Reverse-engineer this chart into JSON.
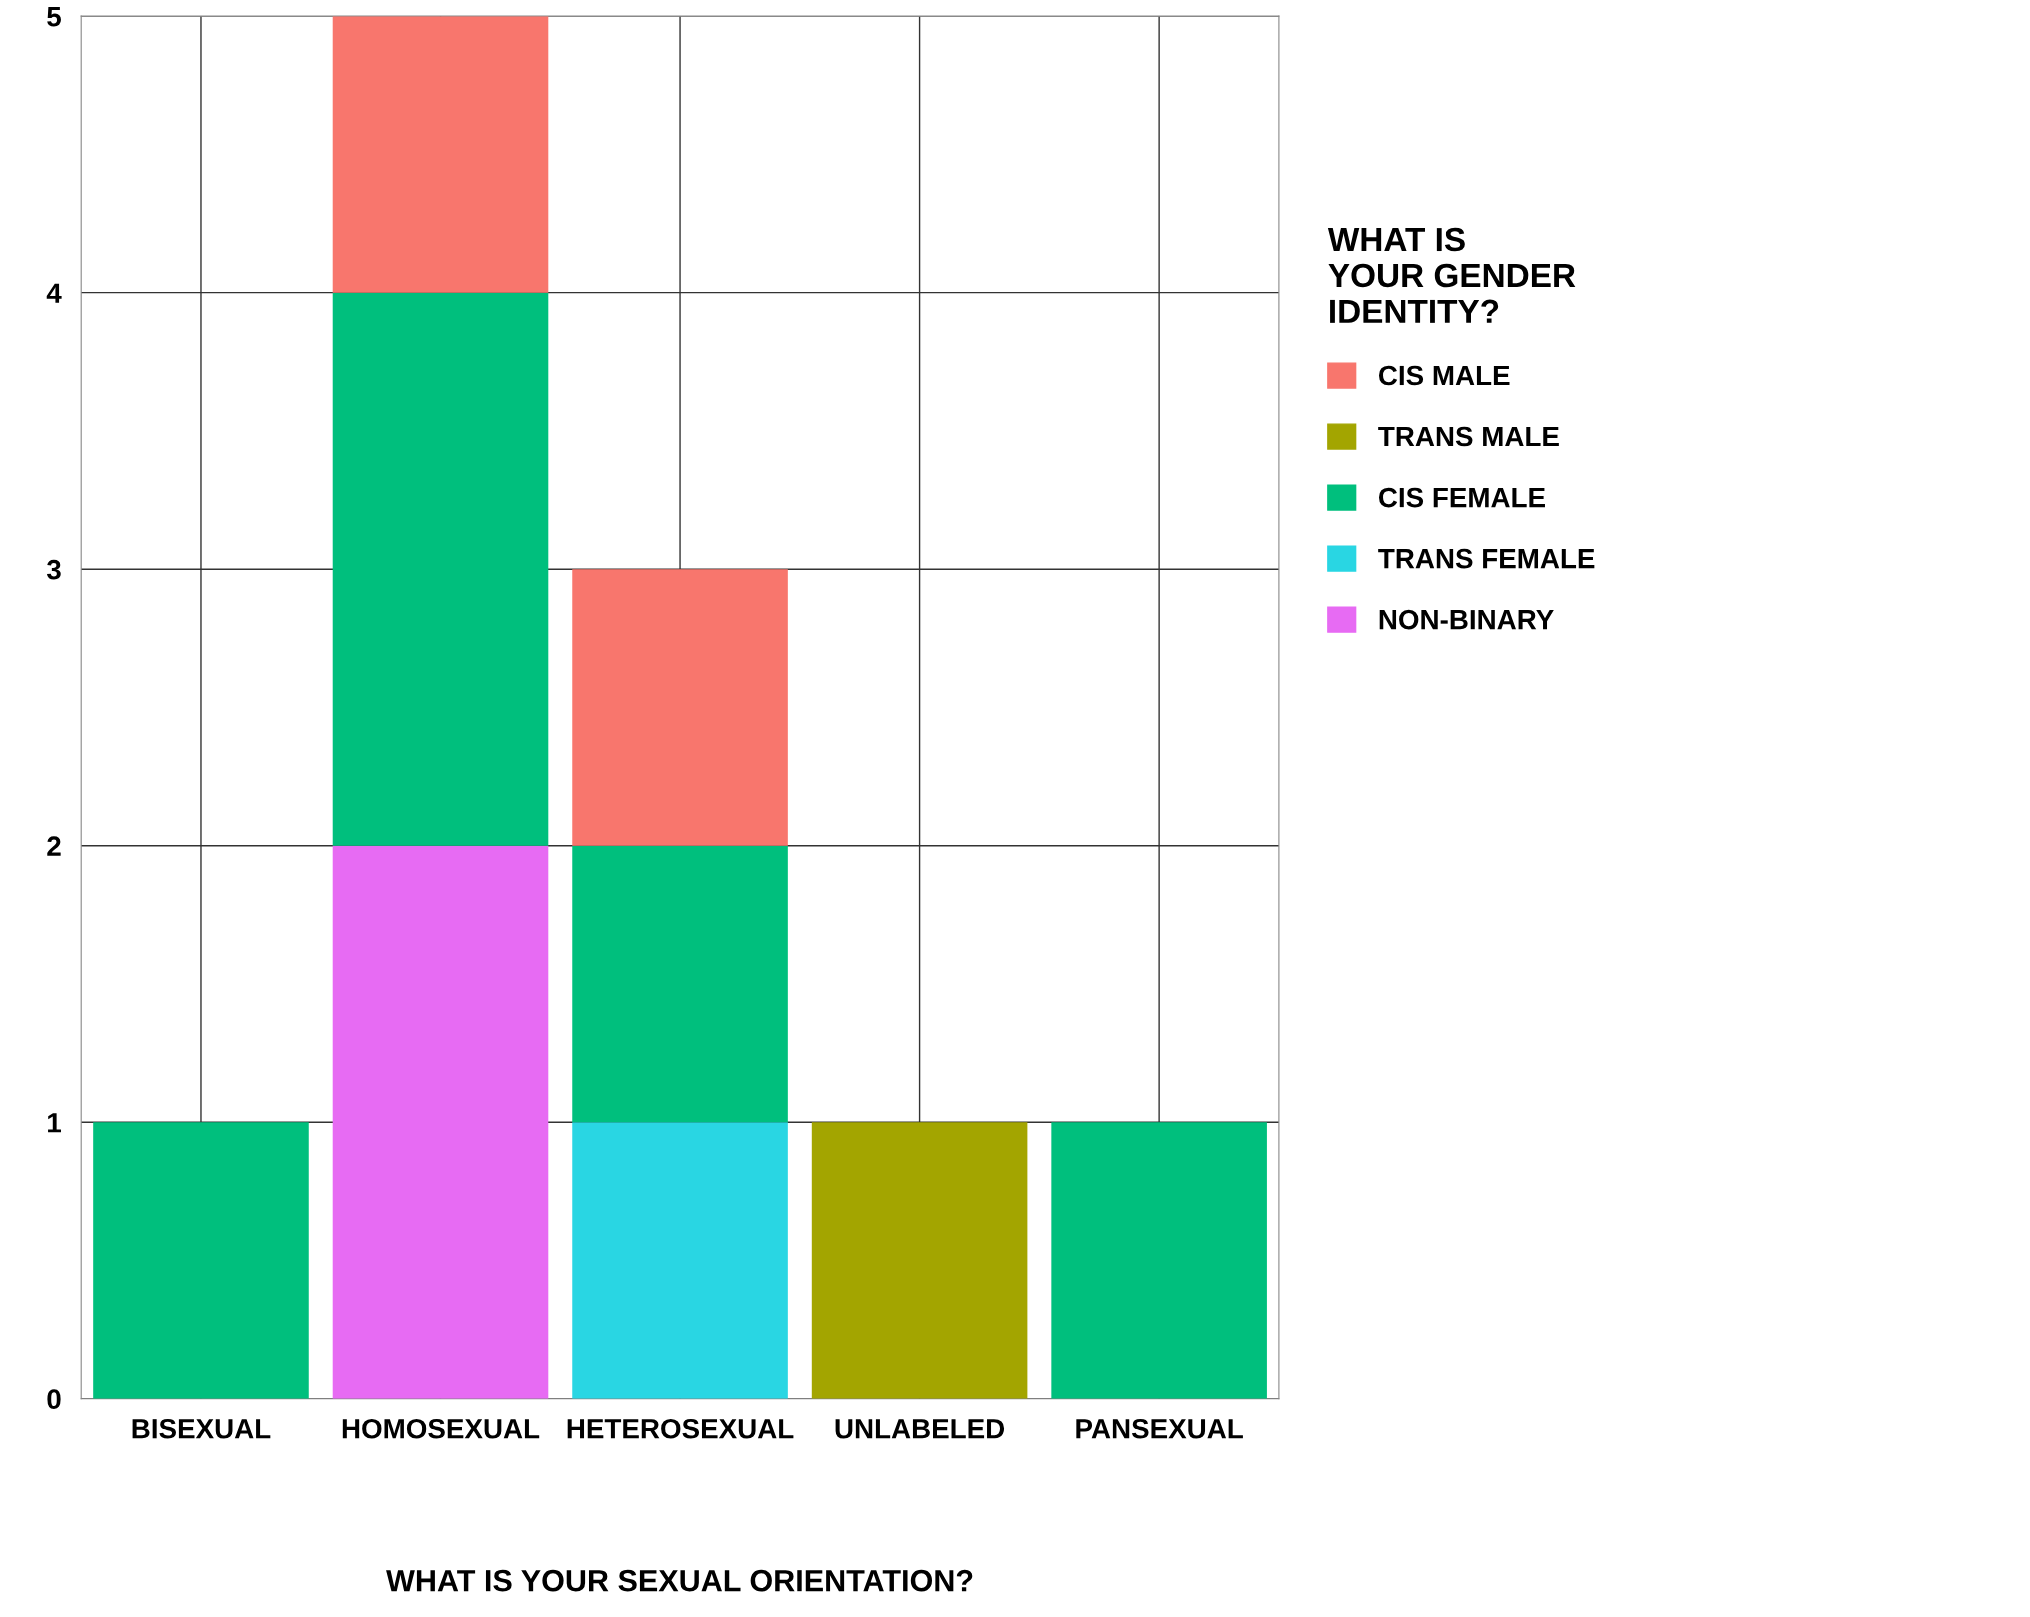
{
  "chart_data": {
    "type": "bar",
    "stacked": true,
    "xlabel": "WHAT IS YOUR SEXUAL ORIENTATION?",
    "legend_title": "WHAT IS\nYOUR GENDER\nIDENTITY?",
    "categories": [
      "BISEXUAL",
      "HOMOSEXUAL",
      "HETEROSEXUAL",
      "UNLABELED",
      "PANSEXUAL"
    ],
    "series": [
      {
        "name": "NON-BINARY",
        "color": "#e76bf3",
        "values": [
          0,
          2,
          0,
          0,
          0
        ]
      },
      {
        "name": "TRANS FEMALE",
        "color": "#29d6e3",
        "values": [
          0,
          0,
          1,
          0,
          0
        ]
      },
      {
        "name": "CIS FEMALE",
        "color": "#00bf7d",
        "values": [
          1,
          2,
          1,
          0,
          1
        ]
      },
      {
        "name": "TRANS MALE",
        "color": "#a3a500",
        "values": [
          0,
          0,
          0,
          1,
          0
        ]
      },
      {
        "name": "CIS MALE",
        "color": "#f8766d",
        "values": [
          0,
          1,
          1,
          0,
          0
        ]
      }
    ],
    "ylim": [
      0,
      5
    ],
    "yticks": [
      0,
      1,
      2,
      3,
      4,
      5
    ],
    "grid": true,
    "legend": "right"
  }
}
